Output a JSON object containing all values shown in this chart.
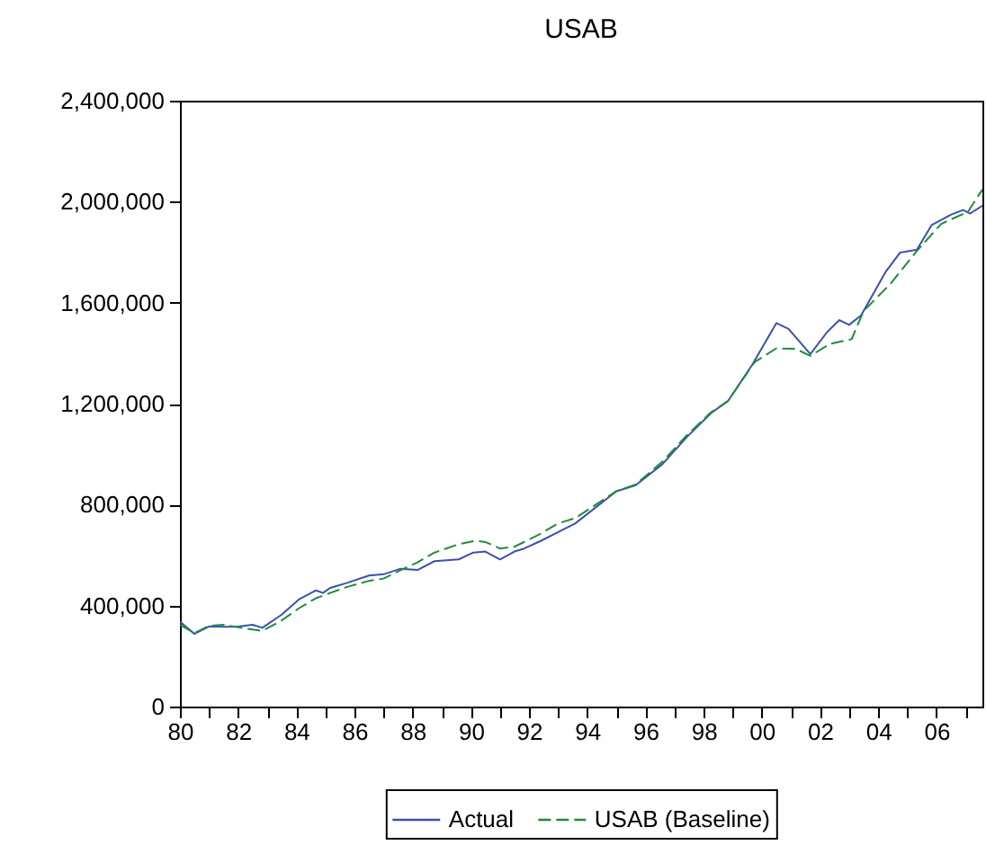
{
  "chart_data": {
    "type": "line",
    "title": "USAB",
    "xlim": [
      "1980-01",
      "2007-08"
    ],
    "xticks": [
      {
        "value": "1980",
        "label": "80"
      },
      {
        "value": "1981",
        "label": null
      },
      {
        "value": "1982",
        "label": "82"
      },
      {
        "value": "1983",
        "label": null
      },
      {
        "value": "1984",
        "label": "84"
      },
      {
        "value": "1985",
        "label": null
      },
      {
        "value": "1986",
        "label": "86"
      },
      {
        "value": "1987",
        "label": null
      },
      {
        "value": "1988",
        "label": "88"
      },
      {
        "value": "1989",
        "label": null
      },
      {
        "value": "1990",
        "label": "90"
      },
      {
        "value": "1991",
        "label": null
      },
      {
        "value": "1992",
        "label": "92"
      },
      {
        "value": "1993",
        "label": null
      },
      {
        "value": "1994",
        "label": "94"
      },
      {
        "value": "1995",
        "label": null
      },
      {
        "value": "1996",
        "label": "96"
      },
      {
        "value": "1997",
        "label": null
      },
      {
        "value": "1998",
        "label": "98"
      },
      {
        "value": "1999",
        "label": null
      },
      {
        "value": "2000",
        "label": "00"
      },
      {
        "value": "2001",
        "label": null
      },
      {
        "value": "2002",
        "label": "02"
      },
      {
        "value": "2003",
        "label": null
      },
      {
        "value": "2004",
        "label": "04"
      },
      {
        "value": "2005",
        "label": null
      },
      {
        "value": "2006",
        "label": "06"
      },
      {
        "value": "2007",
        "label": null
      }
    ],
    "ylim": [
      0,
      2400000
    ],
    "yticks": [
      0,
      {
        "value": 400000,
        "label": "400,000"
      },
      {
        "value": 800000,
        "label": "800,000"
      },
      {
        "value": 1200000,
        "label": "1,200,000"
      },
      {
        "value": 1600000,
        "label": "1,600,000"
      },
      {
        "value": 2000000,
        "label": "2,000,000"
      },
      {
        "value": 2400000,
        "label": "2,400,000"
      }
    ],
    "grid": false,
    "legend": "bottom",
    "series": [
      {
        "name": "Actual",
        "color": "#3b50b0",
        "line_style": "solid",
        "x": [
          "1980-01",
          "1980-07",
          "1981-01",
          "1981-07",
          "1982-01",
          "1982-07",
          "1982-11",
          "1983-07",
          "1984-02",
          "1984-09",
          "1984-12",
          "1985-03",
          "1985-10",
          "1986-07",
          "1987-01",
          "1987-08",
          "1988-03",
          "1988-10",
          "1989-08",
          "1990-02",
          "1990-07",
          "1991-01",
          "1991-07",
          "1991-11",
          "1992-06",
          "1993-01",
          "1993-08",
          "1995-01",
          "1995-09",
          "1996-08",
          "1997-06",
          "1998-04",
          "1998-11",
          "1999-09",
          "2000-07",
          "2000-12",
          "2001-09",
          "2002-04",
          "2002-09",
          "2003-01",
          "2003-06",
          "2004-04",
          "2004-10",
          "2005-05",
          "2005-11",
          "2006-07",
          "2006-12",
          "2007-03",
          "2007-08"
        ],
        "values": [
          336000,
          288000,
          317000,
          316000,
          317000,
          324000,
          312000,
          364000,
          424000,
          460000,
          450000,
          470000,
          490000,
          519000,
          524000,
          546000,
          541000,
          576000,
          583000,
          610000,
          614000,
          583000,
          614000,
          626000,
          657000,
          691000,
          725000,
          853000,
          877000,
          960000,
          1067000,
          1162000,
          1210000,
          1353000,
          1519000,
          1496000,
          1396000,
          1484000,
          1531000,
          1512000,
          1550000,
          1721000,
          1798000,
          1810000,
          1907000,
          1948000,
          1967000,
          1953000,
          1984000
        ]
      },
      {
        "name": "USAB (Baseline)",
        "color": "#1e8c3c",
        "line_style": "dashed",
        "x": [
          "1980-01",
          "1980-07",
          "1981-01",
          "1981-07",
          "1982-01",
          "1982-07",
          "1982-11",
          "1983-07",
          "1984-02",
          "1984-09",
          "1985-03",
          "1985-10",
          "1986-07",
          "1987-01",
          "1987-08",
          "1988-03",
          "1988-10",
          "1989-08",
          "1990-03",
          "1990-07",
          "1991-01",
          "1991-07",
          "1991-12",
          "1992-06",
          "1993-01",
          "1993-08",
          "1995-01",
          "1995-09",
          "1996-08",
          "1997-06",
          "1998-04",
          "1998-11",
          "1999-10",
          "2000-07",
          "2001-03",
          "2001-09",
          "2002-05",
          "2003-02",
          "2003-07",
          "2004-06",
          "2005-05",
          "2006-03",
          "2007-02",
          "2007-06",
          "2007-08"
        ],
        "values": [
          324000,
          291000,
          320000,
          324000,
          314000,
          305000,
          300000,
          341000,
          389000,
          429000,
          450000,
          474000,
          498000,
          507000,
          540000,
          571000,
          610000,
          643000,
          657000,
          652000,
          626000,
          633000,
          657000,
          686000,
          726000,
          746000,
          853000,
          880000,
          970000,
          1074000,
          1165000,
          1210000,
          1364000,
          1419000,
          1417000,
          1389000,
          1436000,
          1455000,
          1567000,
          1674000,
          1805000,
          1912000,
          1960000,
          2019000,
          2048000
        ]
      }
    ]
  }
}
